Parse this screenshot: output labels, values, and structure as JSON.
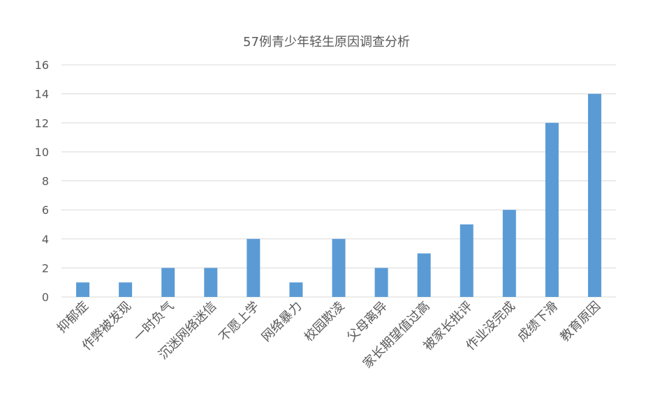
{
  "colors": {
    "bar": "#5b9bd5",
    "grid": "#d9d9d9",
    "text": "#595959"
  },
  "chart_data": {
    "type": "bar",
    "title": "57例青少年轻生原因调查分析",
    "xlabel": "",
    "ylabel": "",
    "categories": [
      "抑郁症",
      "作弊被发现",
      "一时负气",
      "沉迷网络迷信",
      "不愿上学",
      "网络暴力",
      "校园欺凌",
      "父母离异",
      "家长期望值过高",
      "被家长批评",
      "作业没完成",
      "成绩下滑",
      "教育原因"
    ],
    "values": [
      1,
      1,
      2,
      2,
      4,
      1,
      4,
      2,
      3,
      5,
      6,
      12,
      14
    ],
    "ylim": [
      0,
      16
    ],
    "yticks": [
      0,
      2,
      4,
      6,
      8,
      10,
      12,
      14,
      16
    ],
    "grid": true,
    "legend": "none"
  }
}
